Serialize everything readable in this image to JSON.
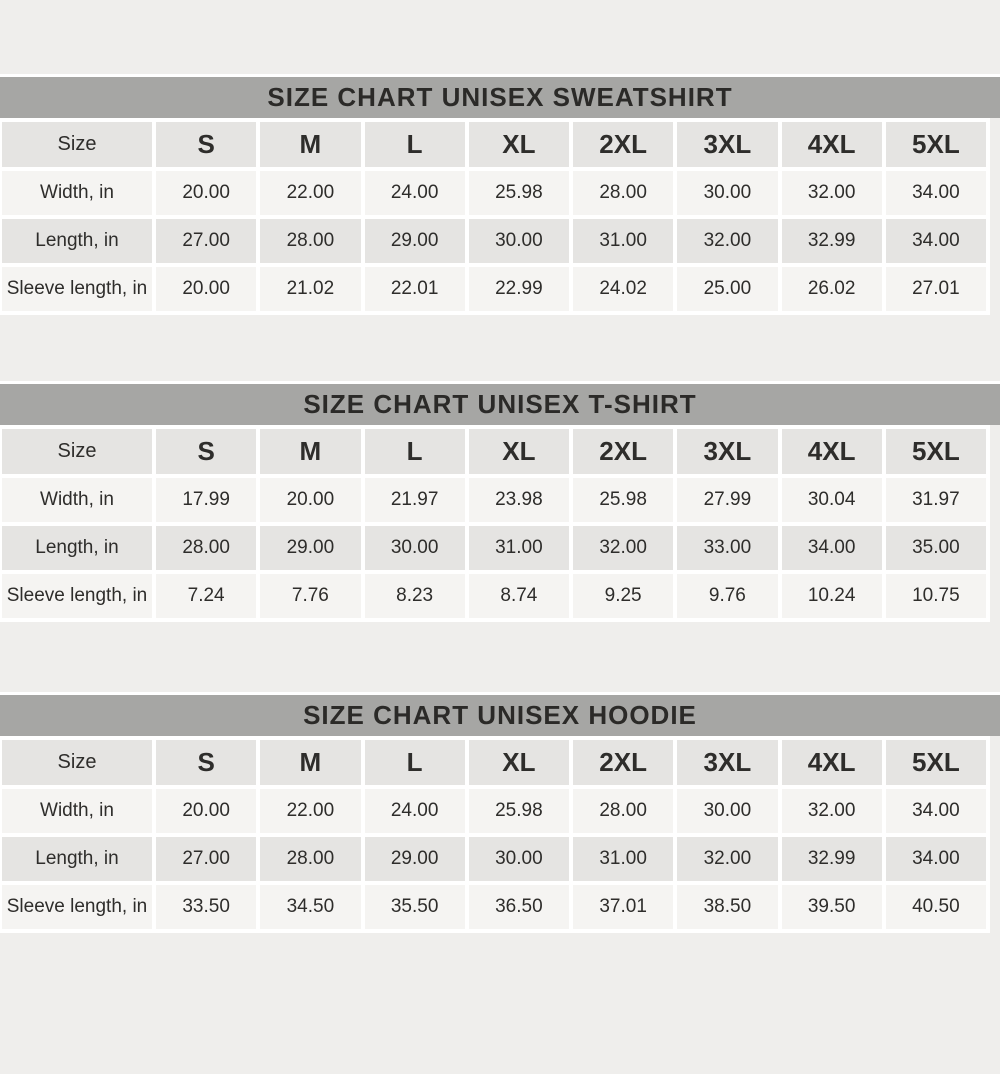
{
  "page": {
    "colors": {
      "page_background": "#efeeec",
      "title_bar": "#a6a6a4",
      "header_cell": "#e5e4e2",
      "light_cell": "#f5f4f2",
      "gutter": "#ffffff",
      "text": "#2e2d2b"
    }
  },
  "chart_data": [
    {
      "type": "table",
      "title": "SIZE CHART UNISEX SWEATSHIRT",
      "columns": [
        "Size",
        "S",
        "M",
        "L",
        "XL",
        "2XL",
        "3XL",
        "4XL",
        "5XL"
      ],
      "rows": [
        {
          "label": "Width, in",
          "values": [
            "20.00",
            "22.00",
            "24.00",
            "25.98",
            "28.00",
            "30.00",
            "32.00",
            "34.00"
          ]
        },
        {
          "label": "Length, in",
          "values": [
            "27.00",
            "28.00",
            "29.00",
            "30.00",
            "31.00",
            "32.00",
            "32.99",
            "34.00"
          ]
        },
        {
          "label": "Sleeve length, in",
          "values": [
            "20.00",
            "21.02",
            "22.01",
            "22.99",
            "24.02",
            "25.00",
            "26.02",
            "27.01"
          ]
        }
      ]
    },
    {
      "type": "table",
      "title": "SIZE CHART UNISEX T-SHIRT",
      "columns": [
        "Size",
        "S",
        "M",
        "L",
        "XL",
        "2XL",
        "3XL",
        "4XL",
        "5XL"
      ],
      "rows": [
        {
          "label": "Width, in",
          "values": [
            "17.99",
            "20.00",
            "21.97",
            "23.98",
            "25.98",
            "27.99",
            "30.04",
            "31.97"
          ]
        },
        {
          "label": "Length, in",
          "values": [
            "28.00",
            "29.00",
            "30.00",
            "31.00",
            "32.00",
            "33.00",
            "34.00",
            "35.00"
          ]
        },
        {
          "label": "Sleeve length, in",
          "values": [
            "7.24",
            "7.76",
            "8.23",
            "8.74",
            "9.25",
            "9.76",
            "10.24",
            "10.75"
          ]
        }
      ]
    },
    {
      "type": "table",
      "title": "SIZE CHART UNISEX HOODIE",
      "columns": [
        "Size",
        "S",
        "M",
        "L",
        "XL",
        "2XL",
        "3XL",
        "4XL",
        "5XL"
      ],
      "rows": [
        {
          "label": "Width, in",
          "values": [
            "20.00",
            "22.00",
            "24.00",
            "25.98",
            "28.00",
            "30.00",
            "32.00",
            "34.00"
          ]
        },
        {
          "label": "Length, in",
          "values": [
            "27.00",
            "28.00",
            "29.00",
            "30.00",
            "31.00",
            "32.00",
            "32.99",
            "34.00"
          ]
        },
        {
          "label": "Sleeve length, in",
          "values": [
            "33.50",
            "34.50",
            "35.50",
            "36.50",
            "37.01",
            "38.50",
            "39.50",
            "40.50"
          ]
        }
      ]
    }
  ]
}
